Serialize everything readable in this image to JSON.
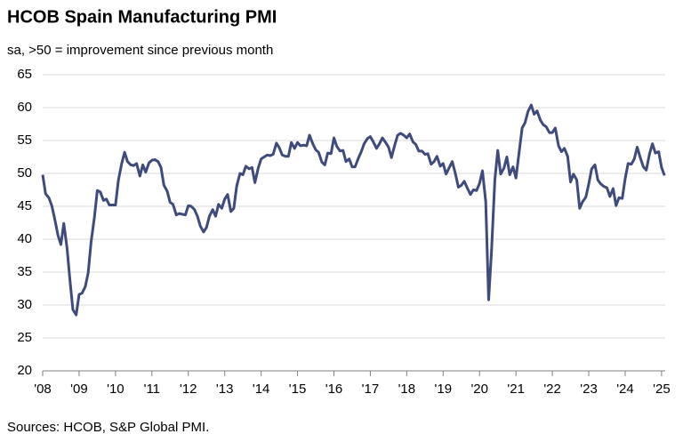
{
  "chart_data": {
    "type": "line",
    "title": "HCOB Spain Manufacturing PMI",
    "subtitle": "sa, >50 = improvement since previous month",
    "source": "Sources: HCOB, S&P Global PMI.",
    "color": "#3e4b7c",
    "grid": true,
    "x": [
      2008.0,
      2008.08,
      2008.17,
      2008.25,
      2008.33,
      2008.42,
      2008.5,
      2008.58,
      2008.67,
      2008.75,
      2008.83,
      2008.92,
      2009.0,
      2009.08,
      2009.17,
      2009.25,
      2009.33,
      2009.42,
      2009.5,
      2009.58,
      2009.67,
      2009.75,
      2009.83,
      2009.92,
      2010.0,
      2010.08,
      2010.17,
      2010.25,
      2010.33,
      2010.42,
      2010.5,
      2010.58,
      2010.67,
      2010.75,
      2010.83,
      2010.92,
      2011.0,
      2011.08,
      2011.17,
      2011.25,
      2011.33,
      2011.42,
      2011.5,
      2011.58,
      2011.67,
      2011.75,
      2011.83,
      2011.92,
      2012.0,
      2012.08,
      2012.17,
      2012.25,
      2012.33,
      2012.42,
      2012.5,
      2012.58,
      2012.67,
      2012.75,
      2012.83,
      2012.92,
      2013.0,
      2013.08,
      2013.17,
      2013.25,
      2013.33,
      2013.42,
      2013.5,
      2013.58,
      2013.67,
      2013.75,
      2013.83,
      2013.92,
      2014.0,
      2014.08,
      2014.17,
      2014.25,
      2014.33,
      2014.42,
      2014.5,
      2014.58,
      2014.67,
      2014.75,
      2014.83,
      2014.92,
      2015.0,
      2015.08,
      2015.17,
      2015.25,
      2015.33,
      2015.42,
      2015.5,
      2015.58,
      2015.67,
      2015.75,
      2015.83,
      2015.92,
      2016.0,
      2016.08,
      2016.17,
      2016.25,
      2016.33,
      2016.42,
      2016.5,
      2016.58,
      2016.67,
      2016.75,
      2016.83,
      2016.92,
      2017.0,
      2017.08,
      2017.17,
      2017.25,
      2017.33,
      2017.42,
      2017.5,
      2017.58,
      2017.67,
      2017.75,
      2017.83,
      2017.92,
      2018.0,
      2018.08,
      2018.17,
      2018.25,
      2018.33,
      2018.42,
      2018.5,
      2018.58,
      2018.67,
      2018.75,
      2018.83,
      2018.92,
      2019.0,
      2019.08,
      2019.17,
      2019.25,
      2019.33,
      2019.42,
      2019.5,
      2019.58,
      2019.67,
      2019.75,
      2019.83,
      2019.92,
      2020.0,
      2020.08,
      2020.17,
      2020.25,
      2020.33,
      2020.42,
      2020.5,
      2020.58,
      2020.67,
      2020.75,
      2020.83,
      2020.92,
      2021.0,
      2021.08,
      2021.17,
      2021.25,
      2021.33,
      2021.42,
      2021.5,
      2021.58,
      2021.67,
      2021.75,
      2021.83,
      2021.92,
      2022.0,
      2022.08,
      2022.17,
      2022.25,
      2022.33,
      2022.42,
      2022.5,
      2022.58,
      2022.67,
      2022.75,
      2022.83,
      2022.92,
      2023.0,
      2023.08,
      2023.17,
      2023.25,
      2023.33,
      2023.42,
      2023.5,
      2023.58,
      2023.67,
      2023.75,
      2023.83,
      2023.92,
      2024.0,
      2024.08,
      2024.17,
      2024.25,
      2024.33,
      2024.42,
      2024.5,
      2024.58,
      2024.67,
      2024.75,
      2024.83,
      2024.92,
      2025.0,
      2025.08
    ],
    "values": [
      49.8,
      46.9,
      46.3,
      45.1,
      43.1,
      40.6,
      39.2,
      42.4,
      38.6,
      33.7,
      29.3,
      28.5,
      31.6,
      31.8,
      32.8,
      34.9,
      39.6,
      43.3,
      47.4,
      47.2,
      45.9,
      46.1,
      45.2,
      45.2,
      45.2,
      49.0,
      51.5,
      53.2,
      51.8,
      51.3,
      51.2,
      51.5,
      49.6,
      51.3,
      50.2,
      51.6,
      52.0,
      52.1,
      51.8,
      50.9,
      48.2,
      47.3,
      45.6,
      45.3,
      43.7,
      43.9,
      43.8,
      43.7,
      45.1,
      45.0,
      44.5,
      43.5,
      42.0,
      41.1,
      41.8,
      43.5,
      44.5,
      43.5,
      45.3,
      44.7,
      46.1,
      46.8,
      44.2,
      44.7,
      48.1,
      50.0,
      49.8,
      51.1,
      50.7,
      50.9,
      48.6,
      50.8,
      52.2,
      52.5,
      52.8,
      52.7,
      52.9,
      54.6,
      53.9,
      52.8,
      52.6,
      52.6,
      54.7,
      53.8,
      54.7,
      54.2,
      54.3,
      54.2,
      55.8,
      54.5,
      53.6,
      53.2,
      51.7,
      51.3,
      53.1,
      53.0,
      55.4,
      54.1,
      53.4,
      53.5,
      51.8,
      52.2,
      51.0,
      51.0,
      52.3,
      53.3,
      54.5,
      55.3,
      55.6,
      54.8,
      53.8,
      54.5,
      55.4,
      54.7,
      54.0,
      52.4,
      54.3,
      55.8,
      56.1,
      55.8,
      55.4,
      56.0,
      54.8,
      54.4,
      53.4,
      53.4,
      52.9,
      53.0,
      51.4,
      51.8,
      52.6,
      51.1,
      51.5,
      49.9,
      50.9,
      51.8,
      50.1,
      47.9,
      48.2,
      48.8,
      47.7,
      46.8,
      47.5,
      47.4,
      48.5,
      50.4,
      45.7,
      30.8,
      38.3,
      49.0,
      53.5,
      49.9,
      50.8,
      52.5,
      49.8,
      51.0,
      49.3,
      52.9,
      56.9,
      57.7,
      59.4,
      60.4,
      59.0,
      59.5,
      58.1,
      57.4,
      57.1,
      56.2,
      56.2,
      56.9,
      54.2,
      53.3,
      53.8,
      52.6,
      48.7,
      49.9,
      49.0,
      44.7,
      45.7,
      46.4,
      48.4,
      50.7,
      51.3,
      49.0,
      48.4,
      48.0,
      47.8,
      46.5,
      47.7,
      45.1,
      46.3,
      46.2,
      49.2,
      51.5,
      51.4,
      52.2,
      54.0,
      52.3,
      51.0,
      50.5,
      53.0,
      54.5,
      53.1,
      53.3,
      50.9,
      49.7
    ],
    "xlim": [
      2008,
      2025.1
    ],
    "xticks": [
      {
        "value": 2008,
        "label": "'08"
      },
      {
        "value": 2009,
        "label": "'09"
      },
      {
        "value": 2010,
        "label": "'10"
      },
      {
        "value": 2011,
        "label": "'11"
      },
      {
        "value": 2012,
        "label": "'12"
      },
      {
        "value": 2013,
        "label": "'13"
      },
      {
        "value": 2014,
        "label": "'14"
      },
      {
        "value": 2015,
        "label": "'15"
      },
      {
        "value": 2016,
        "label": "'16"
      },
      {
        "value": 2017,
        "label": "'17"
      },
      {
        "value": 2018,
        "label": "'18"
      },
      {
        "value": 2019,
        "label": "'19"
      },
      {
        "value": 2020,
        "label": "'20"
      },
      {
        "value": 2021,
        "label": "'21"
      },
      {
        "value": 2022,
        "label": "'22"
      },
      {
        "value": 2023,
        "label": "'23"
      },
      {
        "value": 2024,
        "label": "'24"
      },
      {
        "value": 2025,
        "label": "'25"
      }
    ],
    "ylim": [
      20,
      65
    ],
    "yticks": [
      20,
      25,
      30,
      35,
      40,
      45,
      50,
      55,
      60,
      65
    ]
  }
}
